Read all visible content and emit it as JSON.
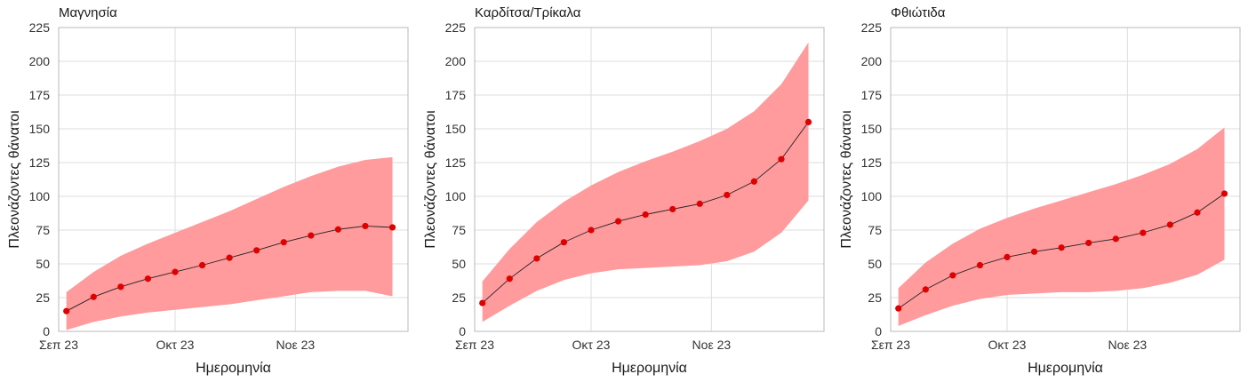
{
  "chart_data": [
    {
      "type": "line",
      "title": "Μαγνησία",
      "xlabel": "Ημερομηνία",
      "ylabel": "Πλεονάζοντες θάνατοι",
      "ylim": [
        0,
        225
      ],
      "yticks": [
        0,
        25,
        50,
        75,
        100,
        125,
        150,
        175,
        200,
        225
      ],
      "xlim": [
        "2023-09-01",
        "2023-11-30"
      ],
      "xticks": [
        {
          "date": "2023-09-01",
          "label": "Σεπ 23"
        },
        {
          "date": "2023-10-01",
          "label": "Οκτ 23"
        },
        {
          "date": "2023-11-01",
          "label": "Νοε 23"
        }
      ],
      "grid": true,
      "color": "#e00000",
      "band_color": "#ff9a9d",
      "x": [
        "2023-09-03",
        "2023-09-10",
        "2023-09-17",
        "2023-09-24",
        "2023-10-01",
        "2023-10-08",
        "2023-10-15",
        "2023-10-22",
        "2023-10-29",
        "2023-11-05",
        "2023-11-12",
        "2023-11-19",
        "2023-11-26"
      ],
      "y": [
        15,
        25.5,
        33,
        39,
        44,
        49,
        54.5,
        60,
        66,
        71,
        75.5,
        78,
        77
      ],
      "lower": [
        1,
        7,
        11,
        14,
        16,
        18,
        20,
        23,
        26,
        29,
        30,
        30,
        26
      ],
      "upper": [
        29,
        44,
        56,
        65,
        73,
        81,
        89,
        98,
        107,
        115,
        122,
        127,
        129
      ]
    },
    {
      "type": "line",
      "title": "Καρδίτσα/Τρίκαλα",
      "xlabel": "Ημερομηνία",
      "ylabel": "Πλεονάζοντες θάνατοι",
      "ylim": [
        0,
        225
      ],
      "yticks": [
        0,
        25,
        50,
        75,
        100,
        125,
        150,
        175,
        200,
        225
      ],
      "xlim": [
        "2023-09-01",
        "2023-11-30"
      ],
      "xticks": [
        {
          "date": "2023-09-01",
          "label": "Σεπ 23"
        },
        {
          "date": "2023-10-01",
          "label": "Οκτ 23"
        },
        {
          "date": "2023-11-01",
          "label": "Νοε 23"
        }
      ],
      "grid": true,
      "color": "#e00000",
      "band_color": "#ff9a9d",
      "x": [
        "2023-09-03",
        "2023-09-10",
        "2023-09-17",
        "2023-09-24",
        "2023-10-01",
        "2023-10-08",
        "2023-10-15",
        "2023-10-22",
        "2023-10-29",
        "2023-11-05",
        "2023-11-12",
        "2023-11-19",
        "2023-11-26"
      ],
      "y": [
        21,
        39,
        54,
        66,
        75,
        81.5,
        86.5,
        90.5,
        94.5,
        101,
        111,
        127.5,
        155
      ],
      "lower": [
        7,
        19,
        30,
        38,
        43,
        46,
        47,
        48,
        49,
        52,
        59,
        73,
        97
      ],
      "upper": [
        37,
        61,
        81,
        96,
        108,
        118,
        126,
        133,
        141,
        150,
        163,
        183,
        214
      ]
    },
    {
      "type": "line",
      "title": "Φθιώτιδα",
      "xlabel": "Ημερομηνία",
      "ylabel": "Πλεονάζοντες θάνατοι",
      "ylim": [
        0,
        225
      ],
      "yticks": [
        0,
        25,
        50,
        75,
        100,
        125,
        150,
        175,
        200,
        225
      ],
      "xlim": [
        "2023-09-01",
        "2023-11-30"
      ],
      "xticks": [
        {
          "date": "2023-09-01",
          "label": "Σεπ 23"
        },
        {
          "date": "2023-10-01",
          "label": "Οκτ 23"
        },
        {
          "date": "2023-11-01",
          "label": "Νοε 23"
        }
      ],
      "grid": true,
      "color": "#e00000",
      "band_color": "#ff9a9d",
      "x": [
        "2023-09-03",
        "2023-09-10",
        "2023-09-17",
        "2023-09-24",
        "2023-10-01",
        "2023-10-08",
        "2023-10-15",
        "2023-10-22",
        "2023-10-29",
        "2023-11-05",
        "2023-11-12",
        "2023-11-19",
        "2023-11-26"
      ],
      "y": [
        17,
        31,
        41.5,
        49,
        55,
        59,
        62,
        65.5,
        68.5,
        73,
        79,
        88,
        102
      ],
      "lower": [
        4,
        12,
        19,
        24,
        27,
        28,
        29,
        29,
        30,
        32,
        36,
        42,
        53
      ],
      "upper": [
        32,
        51,
        65,
        76,
        84,
        91,
        97,
        103,
        109,
        116,
        124,
        135,
        151
      ]
    }
  ]
}
